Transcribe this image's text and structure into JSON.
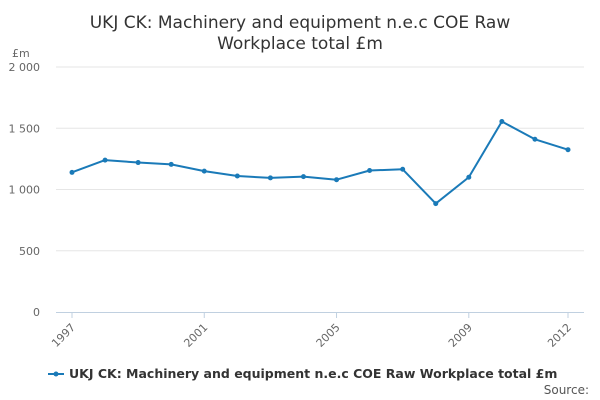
{
  "chart_data": {
    "type": "line",
    "title_line1": "UKJ CK: Machinery and equipment n.e.c COE Raw",
    "title_line2": "Workplace total £m",
    "unit_label": "£m",
    "x": [
      1997,
      1998,
      1999,
      2000,
      2001,
      2002,
      2003,
      2004,
      2005,
      2006,
      2007,
      2008,
      2009,
      2010,
      2011,
      2012
    ],
    "x_tick_labels": [
      "1997",
      "2001",
      "2005",
      "2009",
      "2012"
    ],
    "y_tick_labels": [
      "0",
      "500",
      "1 000",
      "1 500",
      "2 000"
    ],
    "y_ticks": [
      0,
      500,
      1000,
      1500,
      2000
    ],
    "ylim": [
      0,
      2000
    ],
    "xlim": [
      1997,
      2012
    ],
    "grid": true,
    "series": [
      {
        "name": "UKJ CK: Machinery and equipment n.e.c COE Raw Workplace total £m",
        "color": "#1a7ab8",
        "values": [
          1140,
          1240,
          1220,
          1205,
          1150,
          1110,
          1095,
          1105,
          1080,
          1155,
          1165,
          885,
          1100,
          1555,
          1410,
          1325
        ]
      }
    ],
    "legend_position": "bottom-left",
    "source_label": "Source:"
  }
}
